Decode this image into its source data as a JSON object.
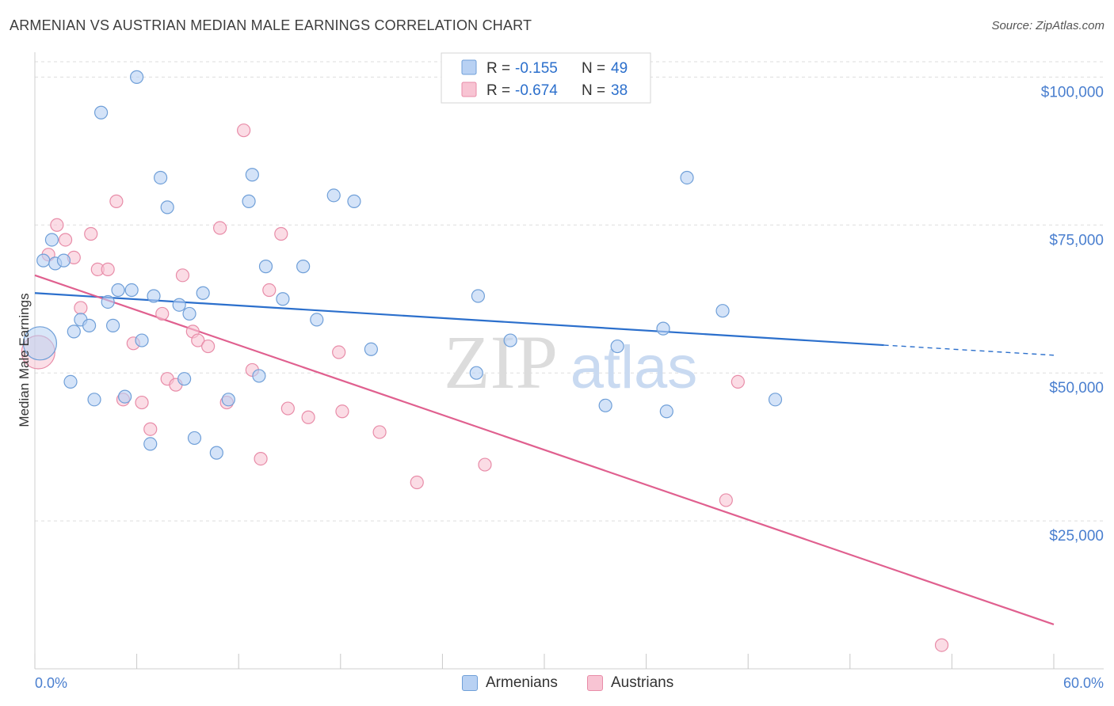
{
  "header": {
    "title": "ARMENIAN VS AUSTRIAN MEDIAN MALE EARNINGS CORRELATION CHART",
    "source": "Source: ZipAtlas.com"
  },
  "watermark": {
    "zip": "ZIP",
    "atlas": "atlas"
  },
  "colors": {
    "armenian_fill": "#b8d1f3",
    "armenian_stroke": "#6f9fd8",
    "armenian_line": "#2b6fcc",
    "austrian_fill": "#f8c4d3",
    "austrian_stroke": "#e88ca8",
    "austrian_line": "#e0608f",
    "tick_label": "#4a7fcf",
    "grid": "#dedede"
  },
  "chart_data": {
    "type": "scatter",
    "title": "ARMENIAN VS AUSTRIAN MEDIAN MALE EARNINGS CORRELATION CHART",
    "xlabel": "",
    "ylabel": "Median Male Earnings",
    "xlim": [
      0,
      60
    ],
    "ylim": [
      0,
      105000
    ],
    "x_tick_labels": [
      "0.0%",
      "60.0%"
    ],
    "y_ticks": [
      25000,
      50000,
      75000,
      100000
    ],
    "y_tick_labels": [
      "$25,000",
      "$50,000",
      "$75,000",
      "$100,000"
    ],
    "grid": true,
    "legend_position": "top-center",
    "stats": [
      {
        "r_label": "R = ",
        "r_value": "-0.155",
        "n_label": "N = ",
        "n_value": "49"
      },
      {
        "r_label": "R = ",
        "r_value": "-0.674",
        "n_label": "N = ",
        "n_value": "38"
      }
    ],
    "series": [
      {
        "name": "Armenians",
        "trend": {
          "x": [
            0,
            50,
            60
          ],
          "y": [
            63500,
            54700,
            53000
          ],
          "solid_until": 50
        },
        "points": [
          {
            "x": 0.3,
            "y": 55000,
            "big": true
          },
          {
            "x": 0.5,
            "y": 69000
          },
          {
            "x": 1.0,
            "y": 72500
          },
          {
            "x": 1.2,
            "y": 68500
          },
          {
            "x": 1.7,
            "y": 69000
          },
          {
            "x": 2.1,
            "y": 48500
          },
          {
            "x": 2.3,
            "y": 57000
          },
          {
            "x": 2.7,
            "y": 59000
          },
          {
            "x": 3.2,
            "y": 58000
          },
          {
            "x": 3.5,
            "y": 45500
          },
          {
            "x": 3.9,
            "y": 94000
          },
          {
            "x": 4.3,
            "y": 62000
          },
          {
            "x": 4.6,
            "y": 58000
          },
          {
            "x": 4.9,
            "y": 64000
          },
          {
            "x": 5.3,
            "y": 46000
          },
          {
            "x": 5.7,
            "y": 64000
          },
          {
            "x": 6.0,
            "y": 100000
          },
          {
            "x": 6.3,
            "y": 55500
          },
          {
            "x": 6.8,
            "y": 38000
          },
          {
            "x": 7.0,
            "y": 63000
          },
          {
            "x": 7.4,
            "y": 83000
          },
          {
            "x": 7.8,
            "y": 78000
          },
          {
            "x": 8.5,
            "y": 61500
          },
          {
            "x": 8.8,
            "y": 49000
          },
          {
            "x": 9.1,
            "y": 60000
          },
          {
            "x": 9.4,
            "y": 39000
          },
          {
            "x": 9.9,
            "y": 63500
          },
          {
            "x": 10.7,
            "y": 36500
          },
          {
            "x": 11.4,
            "y": 45500
          },
          {
            "x": 12.6,
            "y": 79000
          },
          {
            "x": 12.8,
            "y": 83500
          },
          {
            "x": 13.2,
            "y": 49500
          },
          {
            "x": 13.6,
            "y": 68000
          },
          {
            "x": 14.6,
            "y": 62500
          },
          {
            "x": 15.8,
            "y": 68000
          },
          {
            "x": 16.6,
            "y": 59000
          },
          {
            "x": 17.6,
            "y": 80000
          },
          {
            "x": 18.8,
            "y": 79000
          },
          {
            "x": 19.8,
            "y": 54000
          },
          {
            "x": 26.0,
            "y": 50000
          },
          {
            "x": 26.1,
            "y": 63000
          },
          {
            "x": 28.0,
            "y": 55500
          },
          {
            "x": 33.6,
            "y": 44500
          },
          {
            "x": 34.3,
            "y": 54500
          },
          {
            "x": 37.0,
            "y": 57500
          },
          {
            "x": 37.2,
            "y": 43500
          },
          {
            "x": 38.4,
            "y": 83000
          },
          {
            "x": 40.5,
            "y": 60500
          },
          {
            "x": 43.6,
            "y": 45500
          }
        ]
      },
      {
        "name": "Austrians",
        "trend": {
          "x": [
            0,
            60
          ],
          "y": [
            66500,
            7500
          ]
        },
        "points": [
          {
            "x": 0.2,
            "y": 53500,
            "big": true
          },
          {
            "x": 0.8,
            "y": 70000
          },
          {
            "x": 1.3,
            "y": 75000
          },
          {
            "x": 1.8,
            "y": 72500
          },
          {
            "x": 2.3,
            "y": 69500
          },
          {
            "x": 2.7,
            "y": 61000
          },
          {
            "x": 3.3,
            "y": 73500
          },
          {
            "x": 3.7,
            "y": 67500
          },
          {
            "x": 4.3,
            "y": 67500
          },
          {
            "x": 4.8,
            "y": 79000
          },
          {
            "x": 5.2,
            "y": 45500
          },
          {
            "x": 5.8,
            "y": 55000
          },
          {
            "x": 6.3,
            "y": 45000
          },
          {
            "x": 6.8,
            "y": 40500
          },
          {
            "x": 7.5,
            "y": 60000
          },
          {
            "x": 7.8,
            "y": 49000
          },
          {
            "x": 8.3,
            "y": 48000
          },
          {
            "x": 8.7,
            "y": 66500
          },
          {
            "x": 9.3,
            "y": 57000
          },
          {
            "x": 9.6,
            "y": 55500
          },
          {
            "x": 10.2,
            "y": 54500
          },
          {
            "x": 10.9,
            "y": 74500
          },
          {
            "x": 11.3,
            "y": 45000
          },
          {
            "x": 12.3,
            "y": 91000
          },
          {
            "x": 12.8,
            "y": 50500
          },
          {
            "x": 13.3,
            "y": 35500
          },
          {
            "x": 13.8,
            "y": 64000
          },
          {
            "x": 14.5,
            "y": 73500
          },
          {
            "x": 14.9,
            "y": 44000
          },
          {
            "x": 16.1,
            "y": 42500
          },
          {
            "x": 17.9,
            "y": 53500
          },
          {
            "x": 18.1,
            "y": 43500
          },
          {
            "x": 20.3,
            "y": 40000
          },
          {
            "x": 22.5,
            "y": 31500
          },
          {
            "x": 26.5,
            "y": 34500
          },
          {
            "x": 40.7,
            "y": 28500
          },
          {
            "x": 41.4,
            "y": 48500
          },
          {
            "x": 53.4,
            "y": 4000
          }
        ]
      }
    ]
  }
}
